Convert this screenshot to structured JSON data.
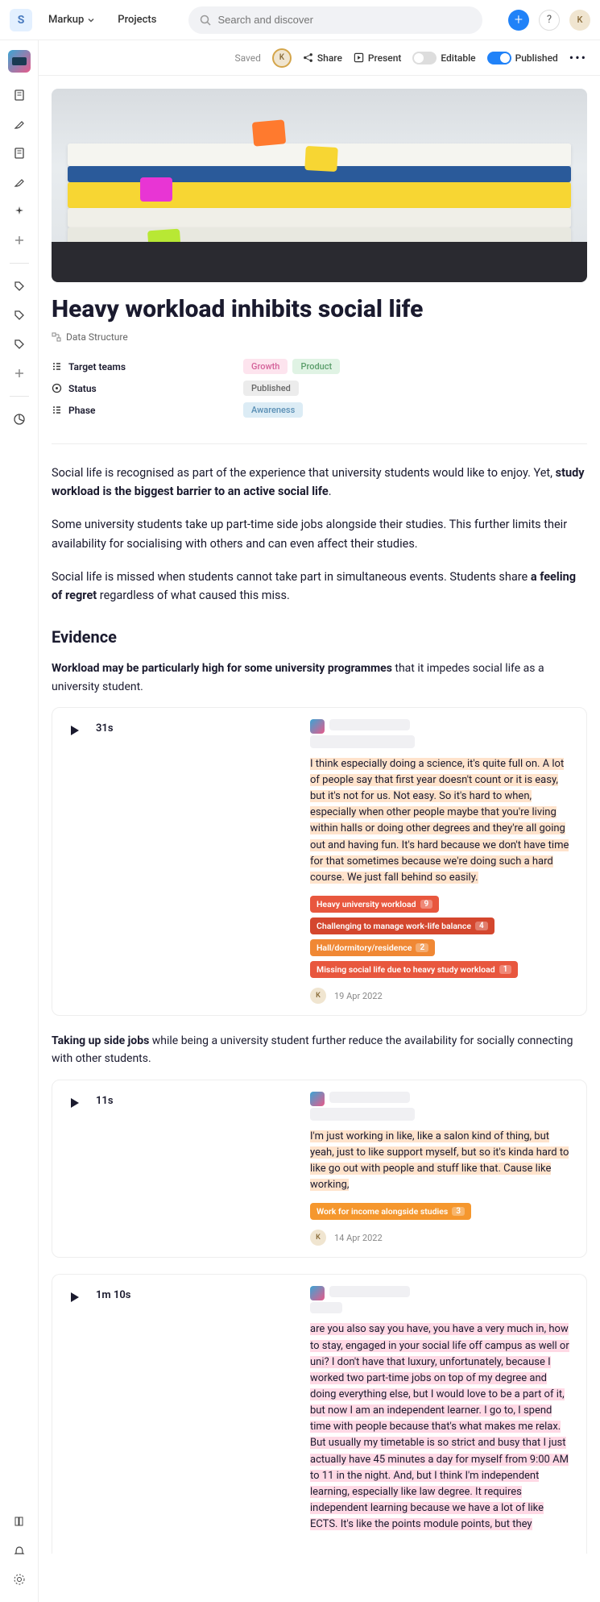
{
  "header": {
    "logo": "S",
    "nav": {
      "markup": "Markup",
      "projects": "Projects"
    },
    "search_placeholder": "Search and discover",
    "avatar": "K"
  },
  "toolbar": {
    "saved": "Saved",
    "avatar": "K",
    "share": "Share",
    "present": "Present",
    "editable": "Editable",
    "published": "Published"
  },
  "page": {
    "title": "Heavy workload inhibits social life",
    "breadcrumb": "Data Structure",
    "meta": {
      "target_teams_label": "Target teams",
      "status_label": "Status",
      "phase_label": "Phase",
      "chips": {
        "growth": "Growth",
        "product": "Product",
        "published": "Published",
        "awareness": "Awareness"
      }
    },
    "intro": {
      "p1_a": "Social life is recognised as part of the experience that university students would like to enjoy. Yet, ",
      "p1_b": "study workload is the biggest barrier to an active social life",
      "p1_c": ".",
      "p2": "Some university students take up part-time side jobs alongside their studies. This further limits their availability for socialising with others and can even affect their studies.",
      "p3_a": "Social life is missed when students cannot take part in simultaneous events. Students share ",
      "p3_b": "a feeling of regret",
      "p3_c": " regardless of what caused this miss."
    },
    "evidence_heading": "Evidence",
    "ev1_intro_b": "Workload may be particularly high for some university programmes",
    "ev1_intro_r": " that it impedes social life as a university student.",
    "clip1": {
      "duration": "31s",
      "transcript": "I think especially doing a science, it's quite full on. A lot of people say that first year doesn't count or it is easy, but it's not for us. Not easy. So it's hard to when, especially when other people maybe that you're living within halls or doing other degrees and they're all going out and having fun. It's hard because we don't have time for that sometimes because we're doing such a hard course. We just fall behind so easily.",
      "tags": [
        {
          "label": "Heavy university workload",
          "count": "9",
          "cls": "tag-red"
        },
        {
          "label": "Challenging to manage work-life balance",
          "count": "4",
          "cls": "tag-darkred"
        },
        {
          "label": "Hall/dormitory/residence",
          "count": "2",
          "cls": "tag-orange"
        },
        {
          "label": "Missing social life due to heavy study workload",
          "count": "1",
          "cls": "tag-red"
        }
      ],
      "author": "K",
      "date": "19 Apr 2022"
    },
    "ev2_intro_b": "Taking up side jobs",
    "ev2_intro_r": " while being a university student further reduce the availability for socially connecting with other students.",
    "clip2": {
      "duration": "11s",
      "transcript": "I'm just working in like, like a salon kind of thing, but yeah, just to like support myself, but so it's kinda hard to like go out with people and stuff like that. Cause like working,",
      "tags": [
        {
          "label": "Work for income alongside studies",
          "count": "3",
          "cls": "tag-orange2"
        }
      ],
      "author": "K",
      "date": "14 Apr 2022"
    },
    "clip3": {
      "duration": "1m 10s",
      "transcript": "are you also say you have, you have a very much in, how to stay, engaged in your social life off campus as well or uni? I don't have that luxury, unfortunately, because I worked two part-time jobs on top of my degree and doing everything else, but I would love to be a part of it, but now I am an independent learner. I go to, I spend time with people because that's what makes me relax. But usually my timetable is so strict and busy that I just actually have 45 minutes a day for myself from 9:00 AM to 11 in the night. And, but I think I'm independent learning, especially like law degree. It requires independent learning because we have a lot of like ECTS. It's like the points module points, but they"
    }
  }
}
